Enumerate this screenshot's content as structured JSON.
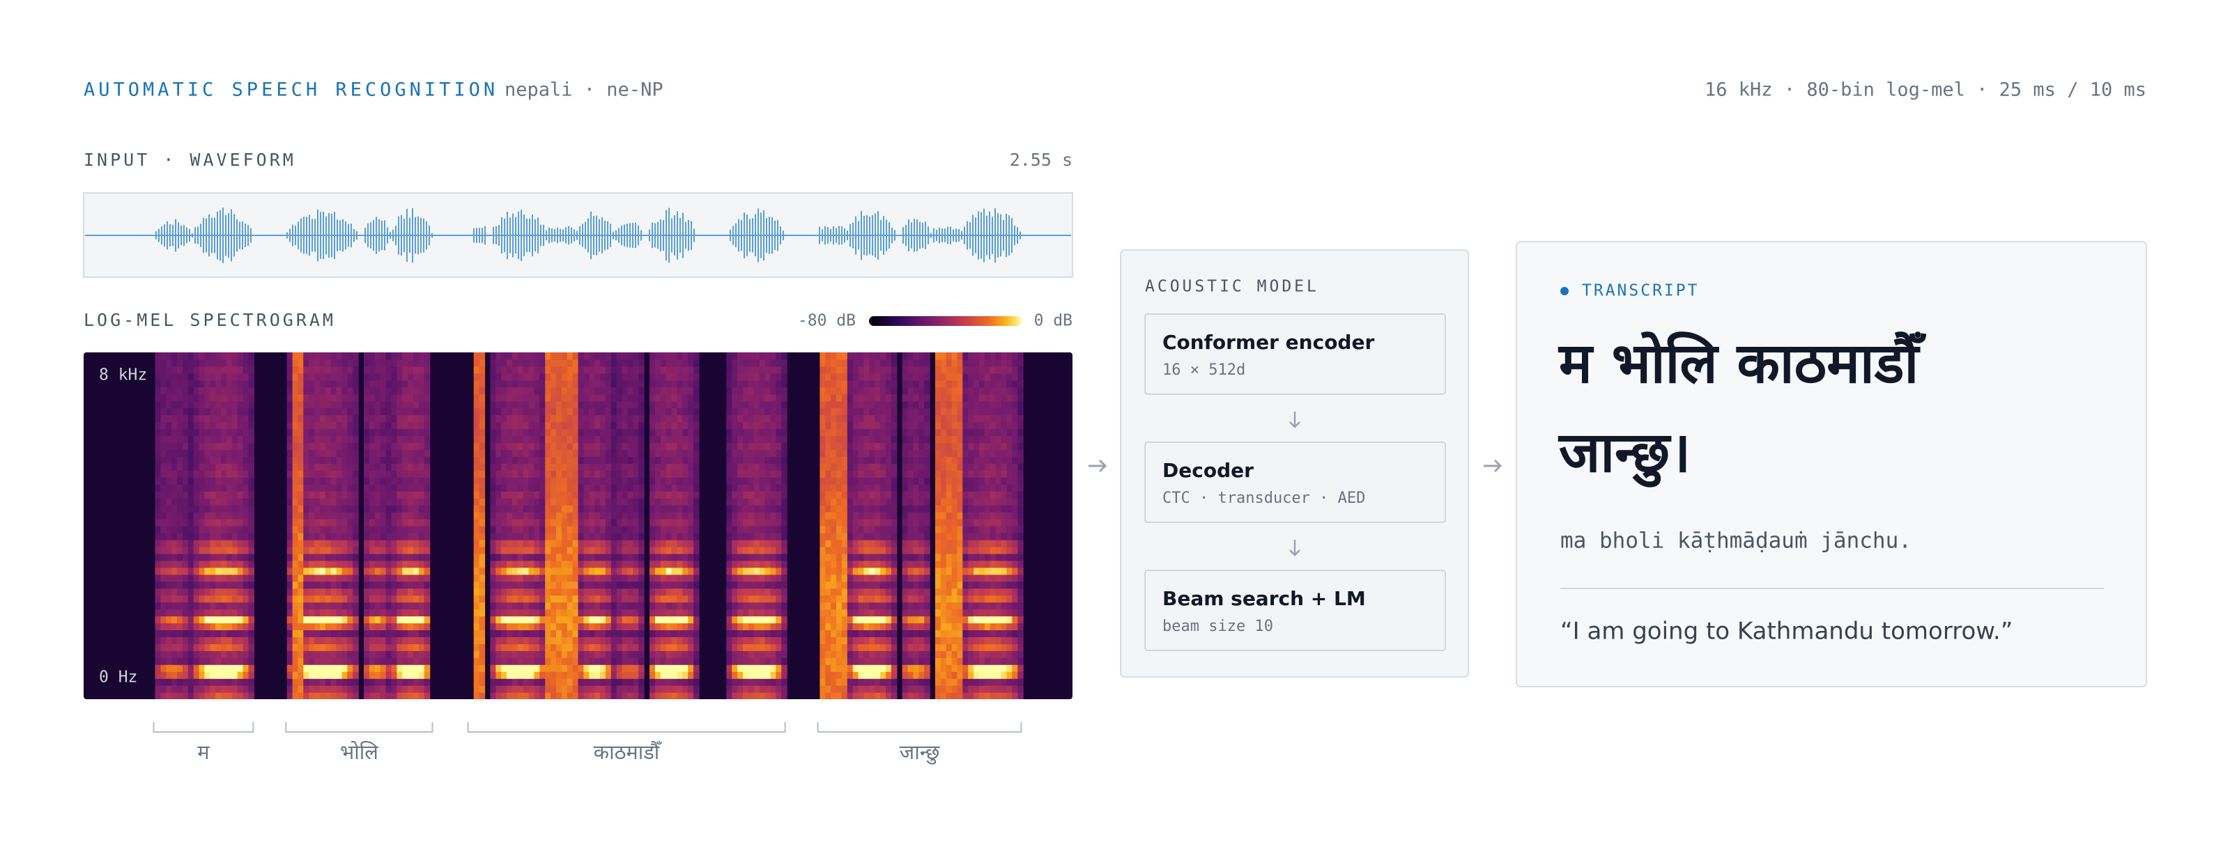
{
  "header": {
    "title": "AUTOMATIC SPEECH RECOGNITION",
    "language": "nepali · ne-NP",
    "features": "16 kHz · 80-bin log-mel · 25 ms / 10 ms"
  },
  "waveform": {
    "label": "INPUT · WAVEFORM",
    "duration": "2.55 s"
  },
  "spectrogram": {
    "label": "LOG-MEL SPECTROGRAM",
    "scale_min": "-80 dB",
    "scale_max": "0 dB",
    "freq_top": "8 kHz",
    "freq_bottom": "0 Hz"
  },
  "words": [
    "म",
    "भोलि",
    "काठमाडौँ",
    "जान्छु"
  ],
  "model": {
    "title": "ACOUSTIC MODEL",
    "stages": [
      {
        "name": "Conformer encoder",
        "detail": "16 × 512d"
      },
      {
        "name": "Decoder",
        "detail": "CTC · transducer · AED"
      },
      {
        "name": "Beam search + LM",
        "detail": "beam size 10"
      }
    ]
  },
  "transcript": {
    "label": "TRANSCRIPT",
    "text_lines": [
      "म भोलि काठमाडौँ",
      "जान्छु।"
    ],
    "romanized": "ma bholi kāṭhmāḍauṁ jānchu.",
    "translation": "“I am going to Kathmandu tomorrow.”"
  }
}
